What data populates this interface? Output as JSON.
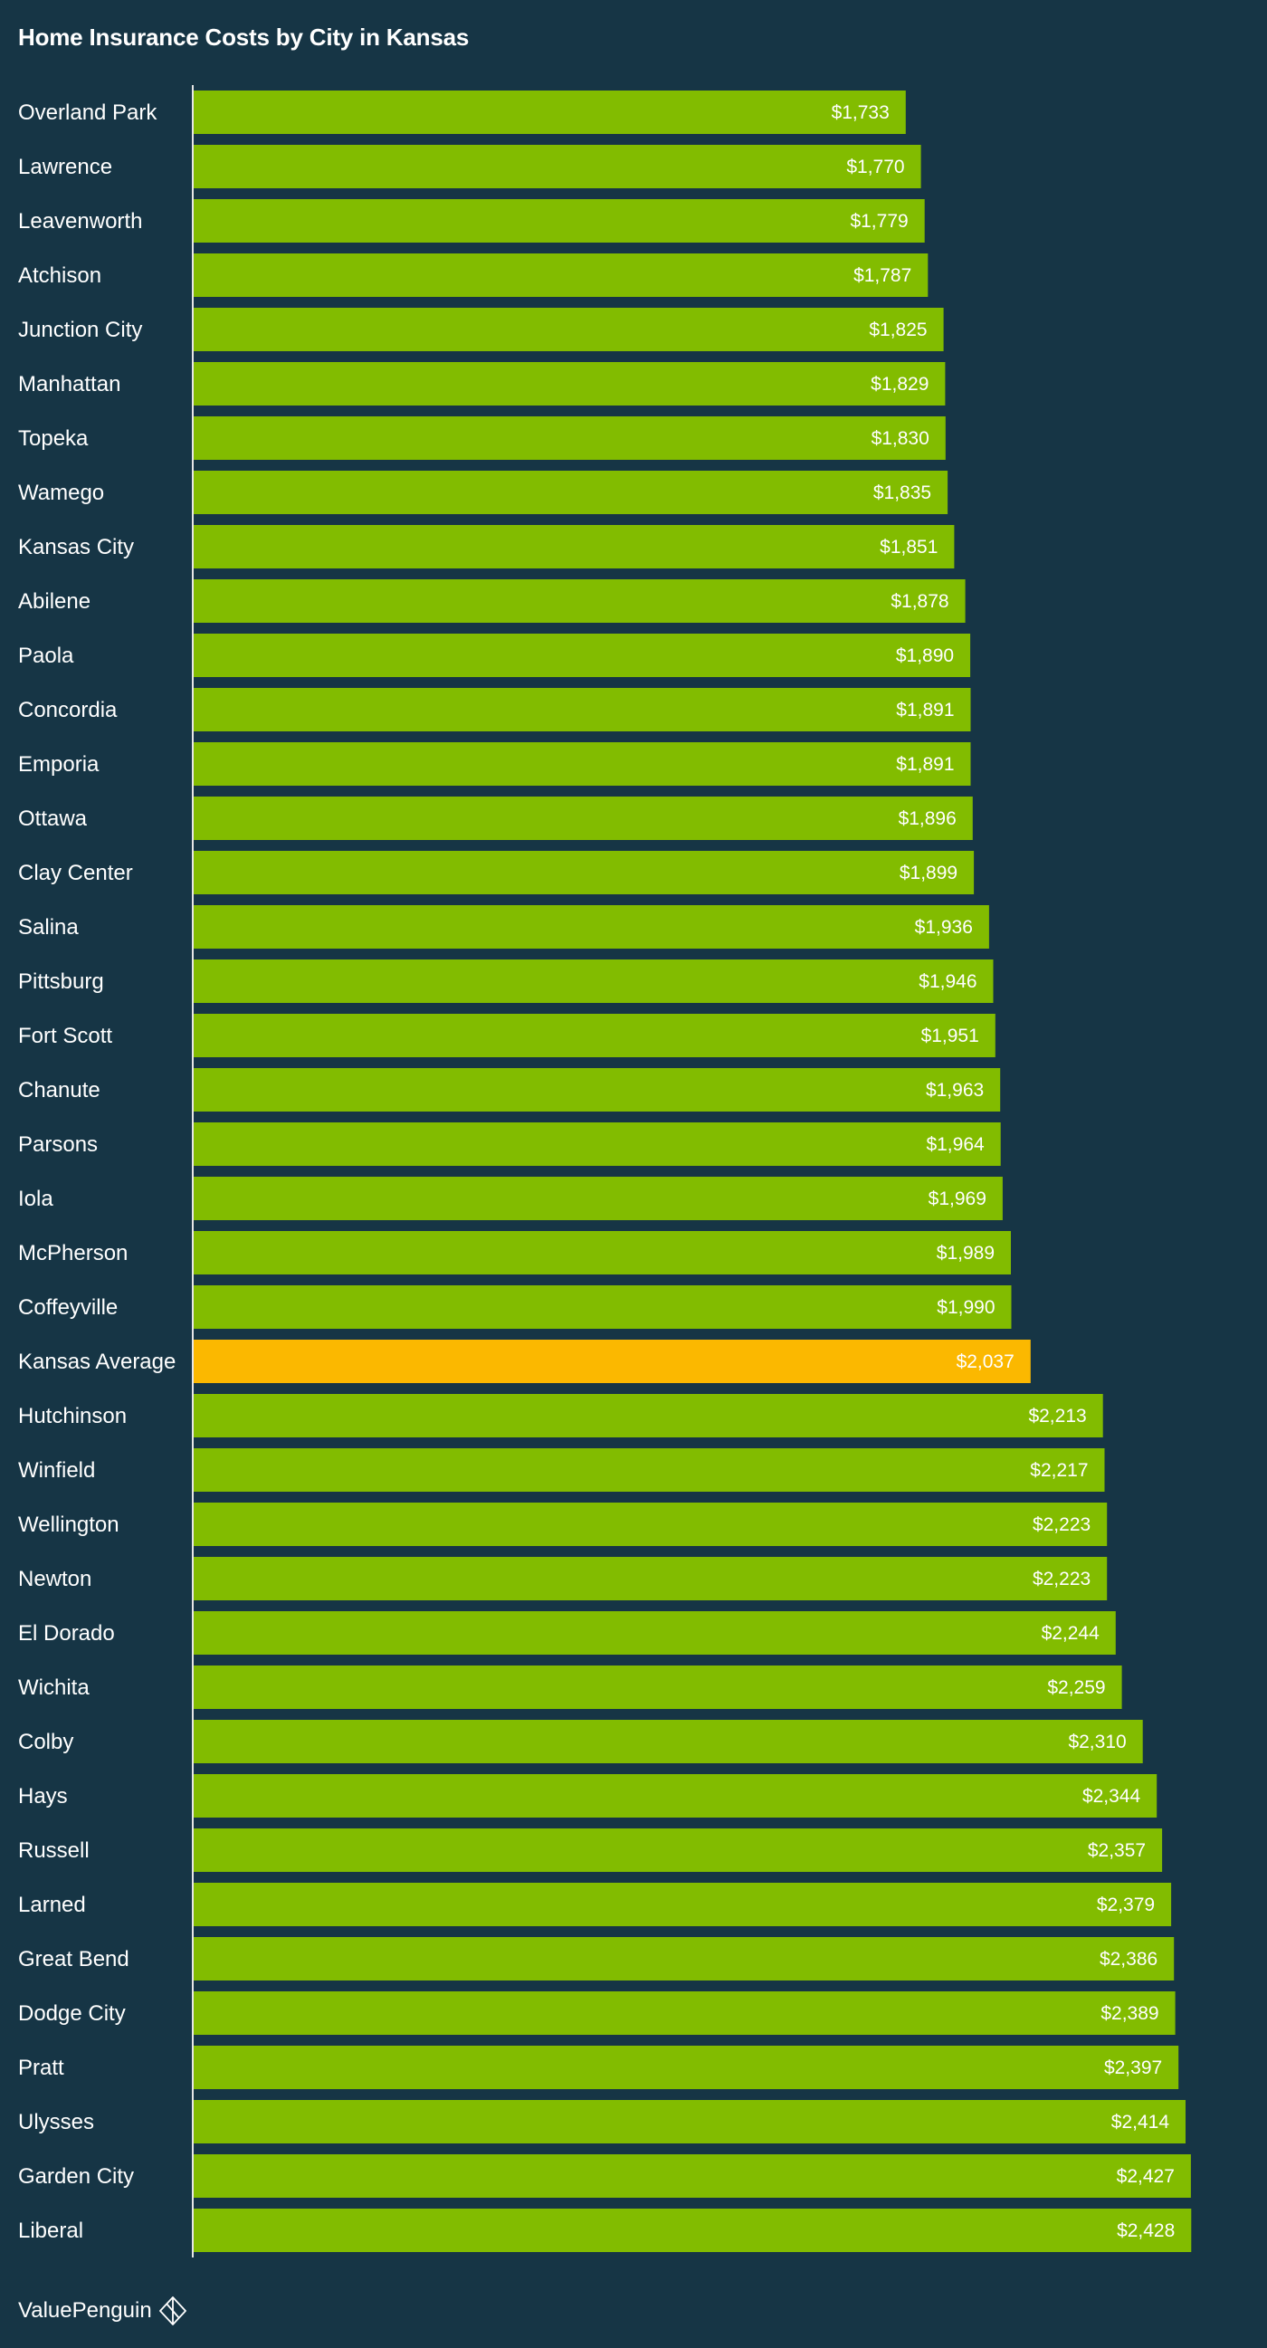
{
  "chart_data": {
    "type": "bar",
    "orientation": "horizontal",
    "title": "Home Insurance Costs by City in Kansas",
    "xlabel": "",
    "ylabel": "",
    "xlim": [
      0,
      2500
    ],
    "grid": false,
    "legend": "none",
    "categories": [
      "Overland Park",
      "Lawrence",
      "Leavenworth",
      "Atchison",
      "Junction City",
      "Manhattan",
      "Topeka",
      "Wamego",
      "Kansas City",
      "Abilene",
      "Paola",
      "Concordia",
      "Emporia",
      "Ottawa",
      "Clay Center",
      "Salina",
      "Pittsburg",
      "Fort Scott",
      "Chanute",
      "Parsons",
      "Iola",
      "McPherson",
      "Coffeyville",
      "Kansas Average",
      "Hutchinson",
      "Winfield",
      "Wellington",
      "Newton",
      "El Dorado",
      "Wichita",
      "Colby",
      "Hays",
      "Russell",
      "Larned",
      "Great Bend",
      "Dodge City",
      "Pratt",
      "Ulysses",
      "Garden City",
      "Liberal"
    ],
    "values": [
      1733,
      1770,
      1779,
      1787,
      1825,
      1829,
      1830,
      1835,
      1851,
      1878,
      1890,
      1891,
      1891,
      1896,
      1899,
      1936,
      1946,
      1951,
      1963,
      1964,
      1969,
      1989,
      1990,
      2037,
      2213,
      2217,
      2223,
      2223,
      2244,
      2259,
      2310,
      2344,
      2357,
      2379,
      2386,
      2389,
      2397,
      2414,
      2427,
      2428
    ],
    "value_labels": [
      "$1,733",
      "$1,770",
      "$1,779",
      "$1,787",
      "$1,825",
      "$1,829",
      "$1,830",
      "$1,835",
      "$1,851",
      "$1,878",
      "$1,890",
      "$1,891",
      "$1,891",
      "$1,896",
      "$1,899",
      "$1,936",
      "$1,946",
      "$1,951",
      "$1,963",
      "$1,964",
      "$1,969",
      "$1,989",
      "$1,990",
      "$2,037",
      "$2,213",
      "$2,217",
      "$2,223",
      "$2,223",
      "$2,244",
      "$2,259",
      "$2,310",
      "$2,344",
      "$2,357",
      "$2,379",
      "$2,386",
      "$2,389",
      "$2,397",
      "$2,414",
      "$2,427",
      "$2,428"
    ],
    "highlight_category": "Kansas Average",
    "colors": {
      "background": "#163545",
      "bar": "#82bc00",
      "highlight_bar": "#fbb800",
      "text": "#ffffff",
      "axis": "#e6e6e6"
    }
  },
  "brand": {
    "name": "ValuePenguin",
    "icon": "valuepenguin-logo-icon"
  }
}
